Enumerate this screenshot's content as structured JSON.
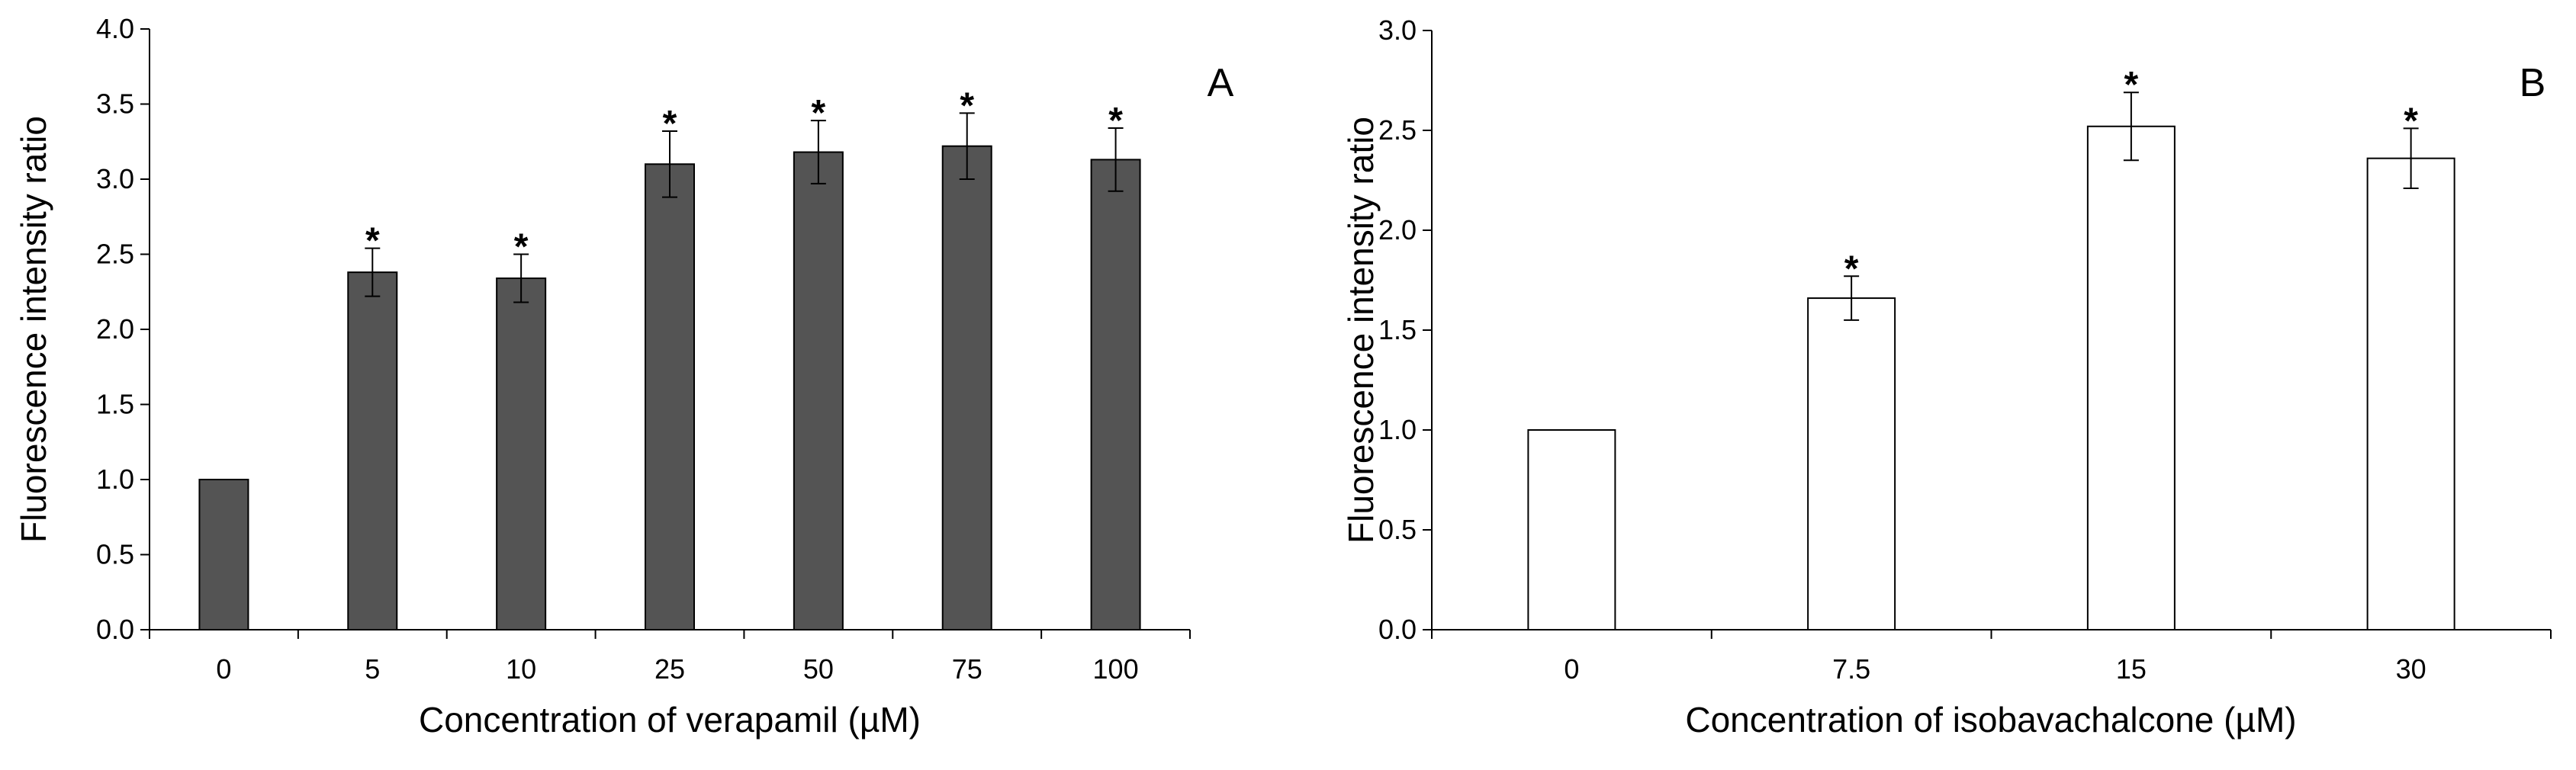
{
  "chart_data": [
    {
      "type": "bar",
      "panel": "A",
      "xlabel": "Concentration of verapamil (µM)",
      "ylabel": "Fluorescence intensity ratio",
      "categories": [
        "0",
        "5",
        "10",
        "25",
        "50",
        "75",
        "100"
      ],
      "values": [
        1.0,
        2.38,
        2.34,
        3.1,
        3.18,
        3.22,
        3.13
      ],
      "errors": [
        0.0,
        0.16,
        0.16,
        0.22,
        0.21,
        0.22,
        0.21
      ],
      "significance": [
        "",
        "*",
        "*",
        "*",
        "*",
        "*",
        "*"
      ],
      "ylim": [
        0.0,
        4.0
      ],
      "yticks": [
        "0.0",
        "0.5",
        "1.0",
        "1.5",
        "2.0",
        "2.5",
        "3.0",
        "3.5",
        "4.0"
      ],
      "bar_color": "#545454",
      "grid": false
    },
    {
      "type": "bar",
      "panel": "B",
      "xlabel": "Concentration of isobavachalcone (µM)",
      "ylabel": "Fluorescence intensity ratio",
      "categories": [
        "0",
        "7.5",
        "15",
        "30"
      ],
      "values": [
        1.0,
        1.66,
        2.52,
        2.36
      ],
      "errors": [
        0.0,
        0.11,
        0.17,
        0.15
      ],
      "significance": [
        "",
        "*",
        "*",
        "*"
      ],
      "ylim": [
        0.0,
        3.0
      ],
      "yticks": [
        "0.0",
        "0.5",
        "1.0",
        "1.5",
        "2.0",
        "2.5",
        "3.0"
      ],
      "bar_color": "#ffffff",
      "grid": false
    }
  ]
}
